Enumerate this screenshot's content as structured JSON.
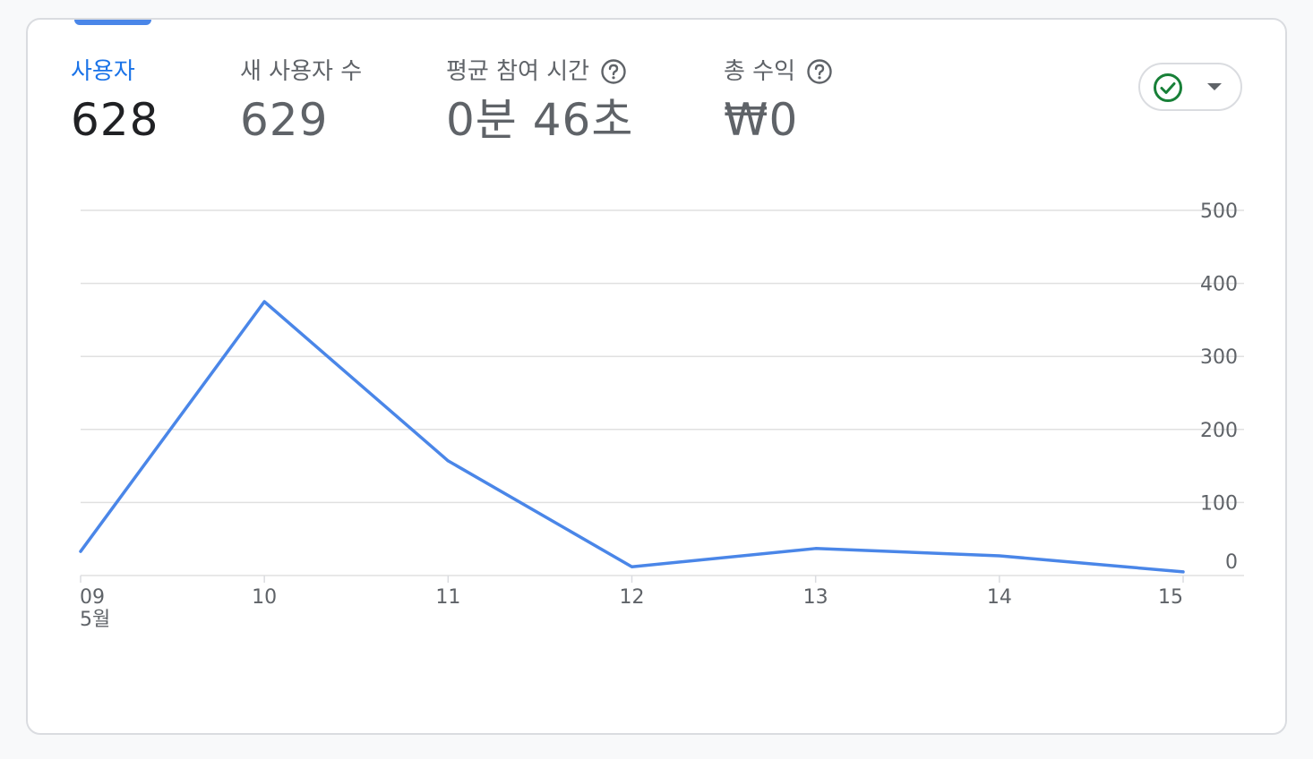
{
  "metrics": [
    {
      "label": "사용자",
      "value": "628",
      "active": true,
      "help": false
    },
    {
      "label": "새 사용자 수",
      "value": "629",
      "active": false,
      "help": false
    },
    {
      "label": "평균 참여 시간",
      "value": "0분 46초",
      "active": false,
      "help": true
    },
    {
      "label": "총 수익",
      "value": "₩0",
      "active": false,
      "help": true
    }
  ],
  "status_button": {
    "icon": "check-circle-icon",
    "dropdown_icon": "caret-down-icon",
    "color": "#188038"
  },
  "colors": {
    "accent": "#1a73e8",
    "line": "#4a86e8",
    "grid": "#e0e0e0"
  },
  "chart_data": {
    "type": "line",
    "categories": [
      "09",
      "10",
      "11",
      "12",
      "13",
      "14",
      "15"
    ],
    "x_month_label": "5월",
    "series": [
      {
        "values": [
          33,
          375,
          157,
          12,
          37,
          27,
          5
        ]
      }
    ],
    "yticks": [
      0,
      100,
      200,
      300,
      400,
      500
    ],
    "ylim": [
      0,
      500
    ],
    "y_axis_position": "right",
    "grid": true
  }
}
